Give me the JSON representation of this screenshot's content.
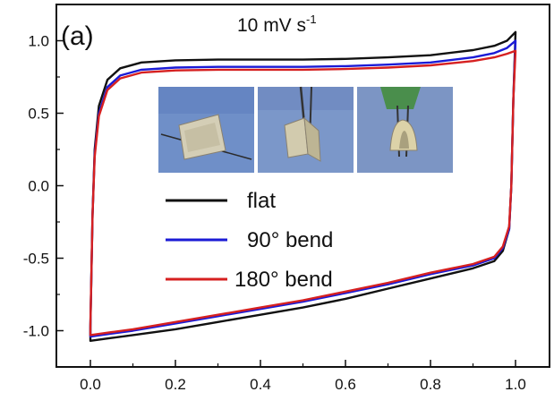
{
  "chart_data": {
    "type": "line",
    "panel_label": "(a)",
    "scan_rate": {
      "value": "10 mV s",
      "superscript": "-1"
    },
    "xlabel": "",
    "ylabel": "",
    "xlim": [
      -0.08,
      1.08
    ],
    "ylim": [
      -1.25,
      1.25
    ],
    "x_ticks": [
      "0.0",
      "0.2",
      "0.4",
      "0.6",
      "0.8",
      "1.0"
    ],
    "y_ticks": [
      "1.0",
      "0.5",
      "0.0",
      "-0.5",
      "-1.0"
    ],
    "grid": false,
    "legend_position": "center",
    "series": [
      {
        "name": "flat",
        "color": "#111111",
        "upper": [
          [
            0.0,
            -0.98
          ],
          [
            0.005,
            -0.2
          ],
          [
            0.01,
            0.25
          ],
          [
            0.02,
            0.55
          ],
          [
            0.04,
            0.73
          ],
          [
            0.07,
            0.81
          ],
          [
            0.12,
            0.85
          ],
          [
            0.2,
            0.865
          ],
          [
            0.3,
            0.87
          ],
          [
            0.4,
            0.87
          ],
          [
            0.5,
            0.87
          ],
          [
            0.6,
            0.875
          ],
          [
            0.7,
            0.885
          ],
          [
            0.8,
            0.9
          ],
          [
            0.9,
            0.935
          ],
          [
            0.95,
            0.965
          ],
          [
            0.98,
            1.0
          ],
          [
            1.0,
            1.06
          ]
        ],
        "lower": [
          [
            1.0,
            1.06
          ],
          [
            0.995,
            0.6
          ],
          [
            0.99,
            0.0
          ],
          [
            0.985,
            -0.3
          ],
          [
            0.97,
            -0.45
          ],
          [
            0.95,
            -0.52
          ],
          [
            0.9,
            -0.57
          ],
          [
            0.8,
            -0.64
          ],
          [
            0.7,
            -0.71
          ],
          [
            0.6,
            -0.78
          ],
          [
            0.5,
            -0.84
          ],
          [
            0.4,
            -0.89
          ],
          [
            0.3,
            -0.94
          ],
          [
            0.2,
            -0.99
          ],
          [
            0.1,
            -1.03
          ],
          [
            0.05,
            -1.05
          ],
          [
            0.0,
            -1.07
          ],
          [
            0.0,
            -0.98
          ]
        ]
      },
      {
        "name": "90° bend",
        "color": "#1b1bd6",
        "upper": [
          [
            0.0,
            -0.97
          ],
          [
            0.005,
            -0.2
          ],
          [
            0.01,
            0.22
          ],
          [
            0.02,
            0.5
          ],
          [
            0.04,
            0.68
          ],
          [
            0.07,
            0.76
          ],
          [
            0.12,
            0.8
          ],
          [
            0.2,
            0.815
          ],
          [
            0.3,
            0.82
          ],
          [
            0.4,
            0.82
          ],
          [
            0.5,
            0.82
          ],
          [
            0.6,
            0.825
          ],
          [
            0.7,
            0.835
          ],
          [
            0.8,
            0.85
          ],
          [
            0.9,
            0.885
          ],
          [
            0.95,
            0.915
          ],
          [
            0.98,
            0.95
          ],
          [
            1.0,
            1.0
          ]
        ],
        "lower": [
          [
            1.0,
            1.0
          ],
          [
            0.995,
            0.6
          ],
          [
            0.99,
            0.0
          ],
          [
            0.985,
            -0.3
          ],
          [
            0.97,
            -0.43
          ],
          [
            0.95,
            -0.5
          ],
          [
            0.9,
            -0.55
          ],
          [
            0.8,
            -0.61
          ],
          [
            0.7,
            -0.68
          ],
          [
            0.6,
            -0.74
          ],
          [
            0.5,
            -0.8
          ],
          [
            0.4,
            -0.85
          ],
          [
            0.3,
            -0.9
          ],
          [
            0.2,
            -0.95
          ],
          [
            0.1,
            -1.0
          ],
          [
            0.05,
            -1.02
          ],
          [
            0.0,
            -1.04
          ],
          [
            0.0,
            -0.97
          ]
        ]
      },
      {
        "name": "180° bend",
        "color": "#d62020",
        "upper": [
          [
            0.0,
            -0.96
          ],
          [
            0.005,
            -0.2
          ],
          [
            0.01,
            0.2
          ],
          [
            0.02,
            0.48
          ],
          [
            0.04,
            0.66
          ],
          [
            0.07,
            0.74
          ],
          [
            0.12,
            0.78
          ],
          [
            0.2,
            0.795
          ],
          [
            0.3,
            0.8
          ],
          [
            0.4,
            0.8
          ],
          [
            0.5,
            0.8
          ],
          [
            0.6,
            0.805
          ],
          [
            0.7,
            0.815
          ],
          [
            0.8,
            0.83
          ],
          [
            0.9,
            0.86
          ],
          [
            0.95,
            0.885
          ],
          [
            0.98,
            0.91
          ],
          [
            1.0,
            0.93
          ]
        ],
        "lower": [
          [
            1.0,
            0.93
          ],
          [
            0.995,
            0.6
          ],
          [
            0.99,
            0.0
          ],
          [
            0.985,
            -0.28
          ],
          [
            0.97,
            -0.42
          ],
          [
            0.95,
            -0.49
          ],
          [
            0.9,
            -0.54
          ],
          [
            0.8,
            -0.6
          ],
          [
            0.7,
            -0.67
          ],
          [
            0.6,
            -0.73
          ],
          [
            0.5,
            -0.79
          ],
          [
            0.4,
            -0.84
          ],
          [
            0.3,
            -0.89
          ],
          [
            0.2,
            -0.94
          ],
          [
            0.1,
            -0.99
          ],
          [
            0.05,
            -1.01
          ],
          [
            0.0,
            -1.03
          ],
          [
            0.0,
            -0.96
          ]
        ]
      }
    ],
    "inset_photos": [
      {
        "name": "flat",
        "bg": "#6f8fc8"
      },
      {
        "name": "90° bend",
        "bg": "#7b97c9"
      },
      {
        "name": "180° bend",
        "bg": "#7c95c4"
      }
    ]
  }
}
